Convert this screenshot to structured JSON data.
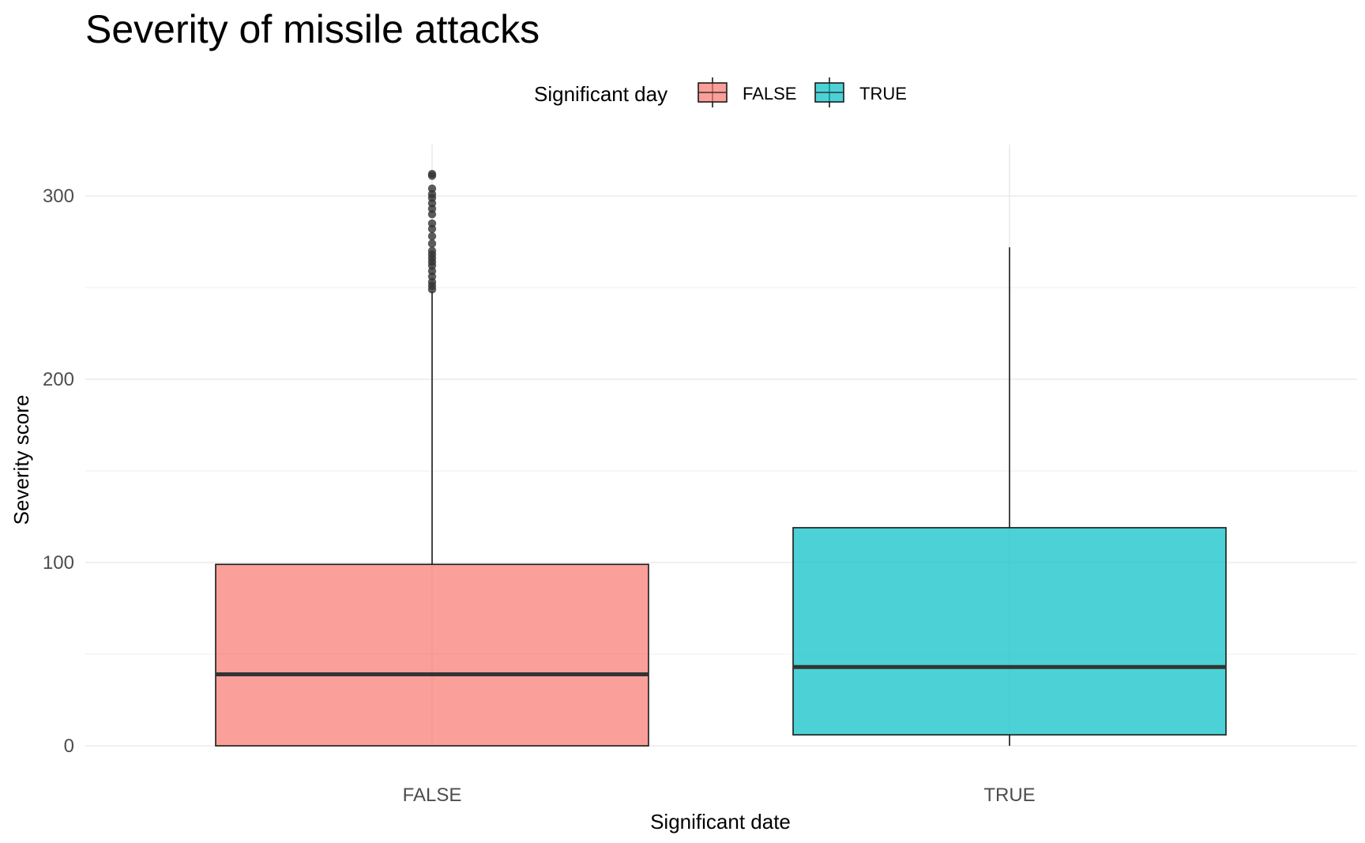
{
  "chart_data": {
    "type": "boxplot",
    "title": "Severity of missile attacks",
    "xlabel": "Significant date",
    "ylabel": "Severity score",
    "categories": [
      "FALSE",
      "TRUE"
    ],
    "ylim": [
      -10,
      330
    ],
    "yticks": [
      0,
      100,
      200,
      300
    ],
    "grid": true,
    "legend": {
      "title": "Significant day",
      "position": "top",
      "entries": [
        {
          "label": "FALSE",
          "color": "#F8766D"
        },
        {
          "label": "TRUE",
          "color": "#00BFC4"
        }
      ]
    },
    "series": [
      {
        "category": "FALSE",
        "color": "#F8766D",
        "min": 0,
        "q1": 0,
        "median": 39,
        "q3": 99,
        "whisker_high": 248,
        "outliers": [
          249,
          251,
          253,
          256,
          259,
          262,
          264,
          266,
          268,
          270,
          274,
          278,
          282,
          285,
          290,
          293,
          296,
          299,
          301,
          304,
          311,
          312
        ]
      },
      {
        "category": "TRUE",
        "color": "#00BFC4",
        "min": 0,
        "q1": 6,
        "median": 43,
        "q3": 119,
        "whisker_high": 272,
        "outliers": []
      }
    ]
  }
}
